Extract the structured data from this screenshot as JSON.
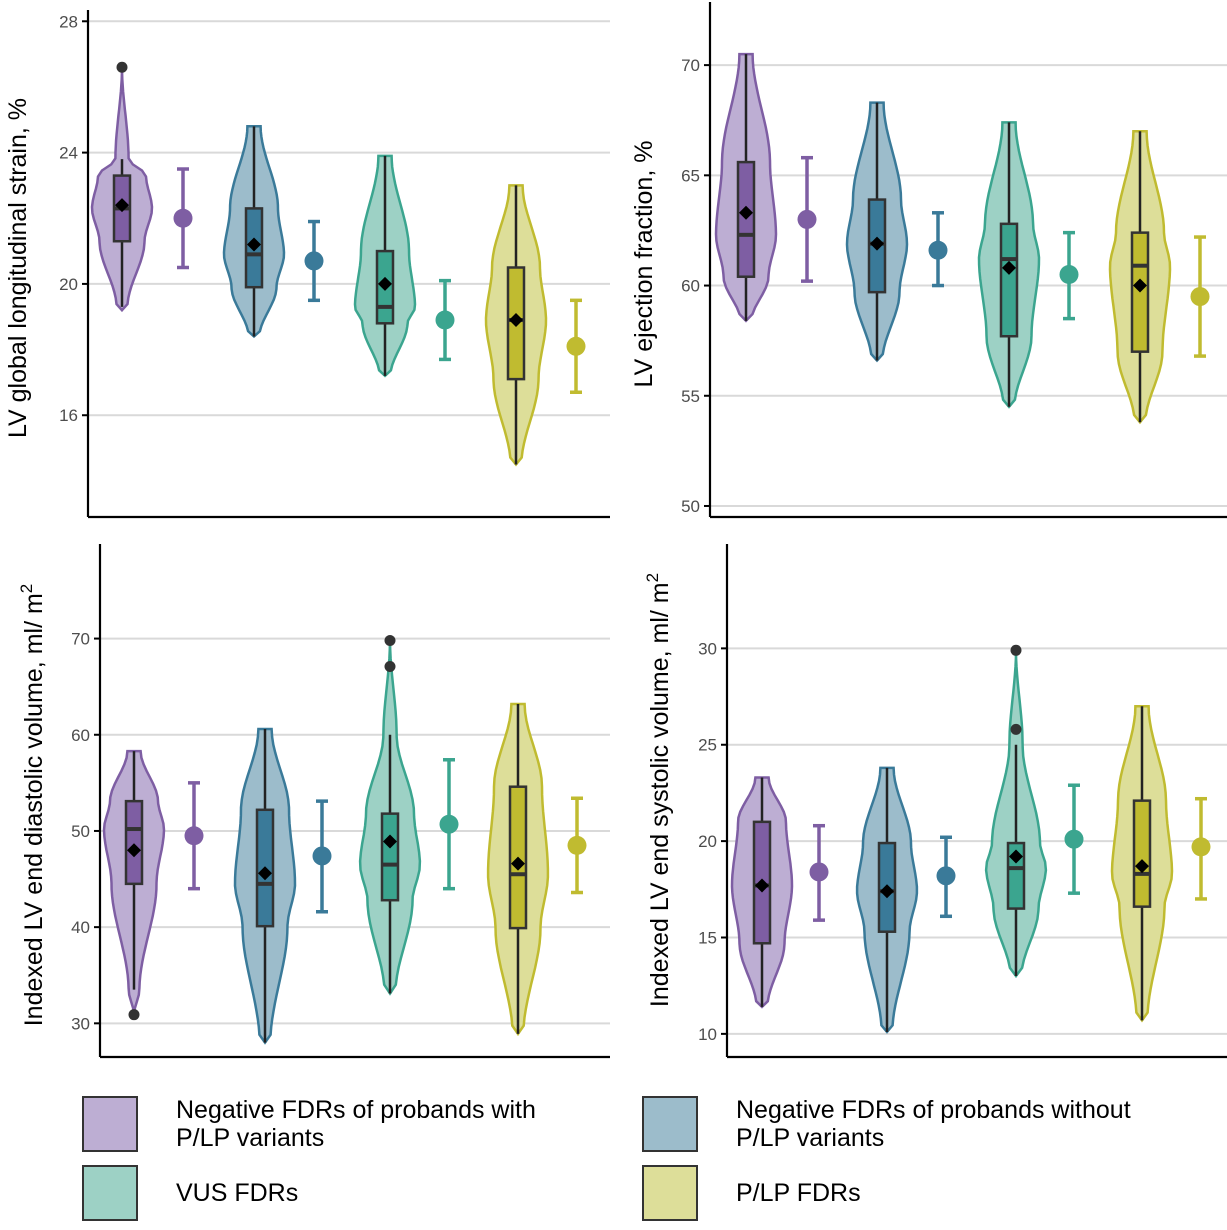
{
  "colors": {
    "neg_with": "#7e5ea3",
    "neg_without": "#3a7a99",
    "vus": "#3ba58f",
    "plp": "#c0bb30",
    "neg_with_fill": "#bdaed3",
    "neg_without_fill": "#9cbccb",
    "vus_fill": "#9dd1c5",
    "plp_fill": "#ddde99",
    "grid": "#d9d9d9",
    "axis": "#000000",
    "tick_label": "#4d4d4d",
    "outlier": "#333333"
  },
  "legend": {
    "items": [
      {
        "label": "Negative FDRs of probands with\nP/LP variants",
        "color_key": "neg_with"
      },
      {
        "label": "Negative FDRs of probands without\nP/LP variants",
        "color_key": "neg_without"
      },
      {
        "label": "VUS FDRs",
        "color_key": "vus"
      },
      {
        "label": "P/LP FDRs",
        "color_key": "plp"
      }
    ]
  },
  "chart_data": [
    {
      "type": "violin",
      "ylabel": "LV global longitudinal strain, %",
      "ylim": [
        12.9,
        28.1
      ],
      "yticks": [
        16,
        20,
        24,
        28
      ],
      "grid": true,
      "groups": [
        {
          "color_key": "neg_with",
          "violin_min": 19.2,
          "violin_max": 26.6,
          "q1": 21.3,
          "median": 22.3,
          "q3": 23.3,
          "whisker_low": 19.3,
          "whisker_high": 23.8,
          "mean": 22.4,
          "outliers": [
            26.6
          ],
          "ci_mean": 22.0,
          "ci_low": 20.5,
          "ci_high": 23.5
        },
        {
          "color_key": "neg_without",
          "violin_min": 18.4,
          "violin_max": 24.8,
          "q1": 19.9,
          "median": 20.9,
          "q3": 22.3,
          "whisker_low": 18.4,
          "whisker_high": 24.8,
          "mean": 21.2,
          "outliers": [],
          "ci_mean": 20.7,
          "ci_low": 19.5,
          "ci_high": 21.9
        },
        {
          "color_key": "vus",
          "violin_min": 17.2,
          "violin_max": 23.9,
          "q1": 18.8,
          "median": 19.3,
          "q3": 21.0,
          "whisker_low": 17.2,
          "whisker_high": 23.9,
          "mean": 20.0,
          "outliers": [],
          "ci_mean": 18.9,
          "ci_low": 17.7,
          "ci_high": 20.1
        },
        {
          "color_key": "plp",
          "violin_min": 14.5,
          "violin_max": 23.0,
          "q1": 17.1,
          "median": 18.9,
          "q3": 20.5,
          "whisker_low": 14.5,
          "whisker_high": 23.0,
          "mean": 18.9,
          "outliers": [],
          "ci_mean": 18.1,
          "ci_low": 16.7,
          "ci_high": 19.5
        }
      ]
    },
    {
      "type": "violin",
      "ylabel": "LV ejection fraction, %",
      "ylim": [
        49.5,
        72.5
      ],
      "yticks": [
        50,
        55,
        60,
        65,
        70
      ],
      "grid": true,
      "groups": [
        {
          "color_key": "neg_with",
          "violin_min": 58.4,
          "violin_max": 70.5,
          "q1": 60.4,
          "median": 62.3,
          "q3": 65.6,
          "whisker_low": 58.4,
          "whisker_high": 70.5,
          "mean": 63.3,
          "outliers": [],
          "ci_mean": 63.0,
          "ci_low": 60.2,
          "ci_high": 65.8
        },
        {
          "color_key": "neg_without",
          "violin_min": 56.6,
          "violin_max": 68.3,
          "q1": 59.7,
          "median": 61.9,
          "q3": 63.9,
          "whisker_low": 56.6,
          "whisker_high": 68.3,
          "mean": 61.9,
          "outliers": [],
          "ci_mean": 61.6,
          "ci_low": 60.0,
          "ci_high": 63.3
        },
        {
          "color_key": "vus",
          "violin_min": 54.5,
          "violin_max": 67.4,
          "q1": 57.7,
          "median": 61.2,
          "q3": 62.8,
          "whisker_low": 54.5,
          "whisker_high": 67.4,
          "mean": 60.8,
          "outliers": [],
          "ci_mean": 60.5,
          "ci_low": 58.5,
          "ci_high": 62.4
        },
        {
          "color_key": "plp",
          "violin_min": 53.8,
          "violin_max": 67.0,
          "q1": 57.0,
          "median": 60.9,
          "q3": 62.4,
          "whisker_low": 53.8,
          "whisker_high": 67.0,
          "mean": 60.0,
          "outliers": [],
          "ci_mean": 59.5,
          "ci_low": 56.8,
          "ci_high": 62.2
        }
      ]
    },
    {
      "type": "violin",
      "ylabel": "Indexed LV end diastolic volume, ml/ m",
      "ylabel_superscript": "2",
      "ylim": [
        26.5,
        79.0
      ],
      "yticks": [
        30,
        40,
        50,
        60,
        70
      ],
      "grid": true,
      "groups": [
        {
          "color_key": "neg_with",
          "violin_min": 30.9,
          "violin_max": 58.3,
          "q1": 44.5,
          "median": 50.2,
          "q3": 53.1,
          "whisker_low": 33.5,
          "whisker_high": 58.3,
          "mean": 48.0,
          "outliers": [
            30.9
          ],
          "ci_mean": 49.5,
          "ci_low": 44.0,
          "ci_high": 55.0
        },
        {
          "color_key": "neg_without",
          "violin_min": 28.0,
          "violin_max": 60.6,
          "q1": 40.1,
          "median": 44.5,
          "q3": 52.2,
          "whisker_low": 28.0,
          "whisker_high": 60.6,
          "mean": 45.6,
          "outliers": [],
          "ci_mean": 47.4,
          "ci_low": 41.6,
          "ci_high": 53.1
        },
        {
          "color_key": "vus",
          "violin_min": 33.1,
          "violin_max": 69.8,
          "q1": 42.8,
          "median": 46.5,
          "q3": 51.8,
          "whisker_low": 33.1,
          "whisker_high": 60.0,
          "mean": 48.9,
          "outliers": [
            67.1,
            69.8
          ],
          "ci_mean": 50.7,
          "ci_low": 44.0,
          "ci_high": 57.4
        },
        {
          "color_key": "plp",
          "violin_min": 28.9,
          "violin_max": 63.2,
          "q1": 39.9,
          "median": 45.5,
          "q3": 54.6,
          "whisker_low": 28.9,
          "whisker_high": 63.2,
          "mean": 46.6,
          "outliers": [],
          "ci_mean": 48.5,
          "ci_low": 43.6,
          "ci_high": 53.4
        }
      ]
    },
    {
      "type": "violin",
      "ylabel": "Indexed LV end systolic volume, ml/ m",
      "ylabel_superscript": "2",
      "ylim": [
        8.8,
        35.0
      ],
      "yticks": [
        10,
        15,
        20,
        25,
        30
      ],
      "grid": true,
      "groups": [
        {
          "color_key": "neg_with",
          "violin_min": 11.4,
          "violin_max": 23.3,
          "q1": 14.7,
          "median": 17.7,
          "q3": 21.0,
          "whisker_low": 11.4,
          "whisker_high": 23.3,
          "mean": 17.7,
          "outliers": [],
          "ci_mean": 18.4,
          "ci_low": 15.9,
          "ci_high": 20.8
        },
        {
          "color_key": "neg_without",
          "violin_min": 10.1,
          "violin_max": 23.8,
          "q1": 15.3,
          "median": 17.4,
          "q3": 19.9,
          "whisker_low": 10.1,
          "whisker_high": 23.8,
          "mean": 17.4,
          "outliers": [],
          "ci_mean": 18.2,
          "ci_low": 16.1,
          "ci_high": 20.2
        },
        {
          "color_key": "vus",
          "violin_min": 13.0,
          "violin_max": 29.9,
          "q1": 16.5,
          "median": 18.6,
          "q3": 19.9,
          "whisker_low": 13.0,
          "whisker_high": 25.0,
          "mean": 19.2,
          "outliers": [
            25.8,
            29.9
          ],
          "ci_mean": 20.1,
          "ci_low": 17.3,
          "ci_high": 22.9
        },
        {
          "color_key": "plp",
          "violin_min": 10.7,
          "violin_max": 27.0,
          "q1": 16.6,
          "median": 18.3,
          "q3": 22.1,
          "whisker_low": 10.7,
          "whisker_high": 27.0,
          "mean": 18.7,
          "outliers": [],
          "ci_mean": 19.7,
          "ci_low": 17.0,
          "ci_high": 22.2
        }
      ]
    }
  ]
}
